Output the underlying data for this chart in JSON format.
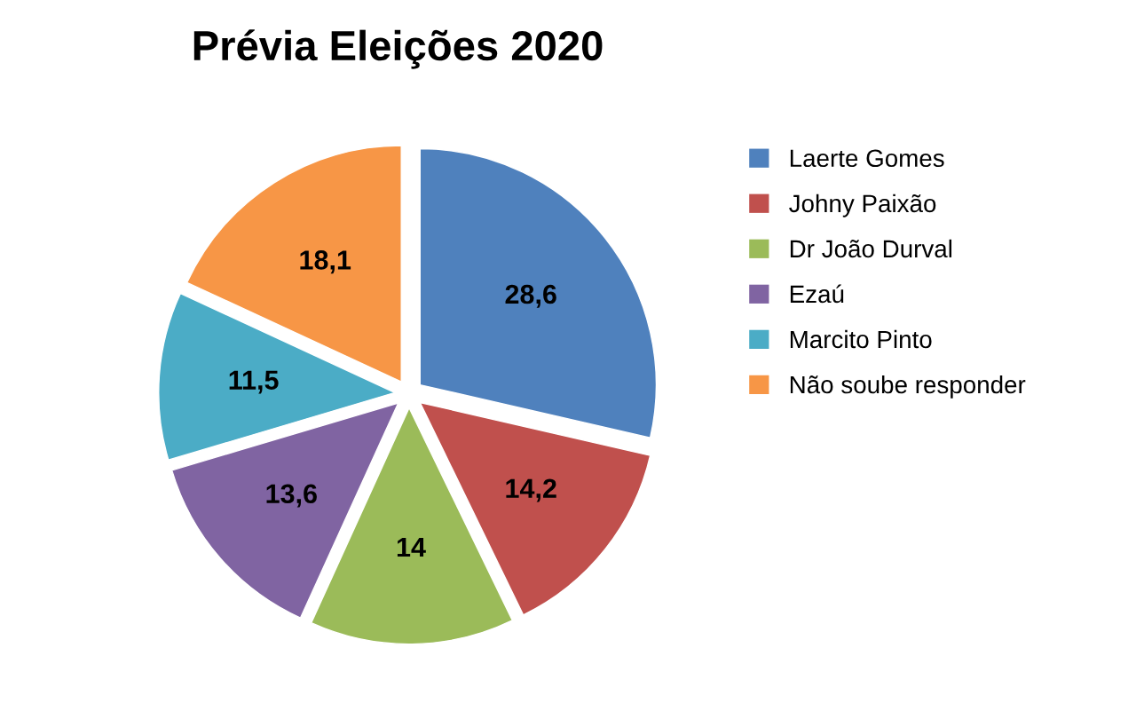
{
  "chart_data": {
    "type": "pie",
    "title": "Prévia Eleições 2020",
    "categories": [
      "Laerte Gomes",
      "Johny Paixão",
      "Dr João Durval",
      "Ezaú",
      "Marcito Pinto",
      "Não soube responder"
    ],
    "values": [
      28.6,
      14.2,
      14,
      13.6,
      11.5,
      18.1
    ],
    "value_labels": [
      "28,6",
      "14,2",
      "14",
      "13,6",
      "11,5",
      "18,1"
    ],
    "colors": [
      "#4f81bd",
      "#c0504d",
      "#9bbb59",
      "#8064a2",
      "#4bacc6",
      "#f79646"
    ],
    "legend": "right"
  }
}
